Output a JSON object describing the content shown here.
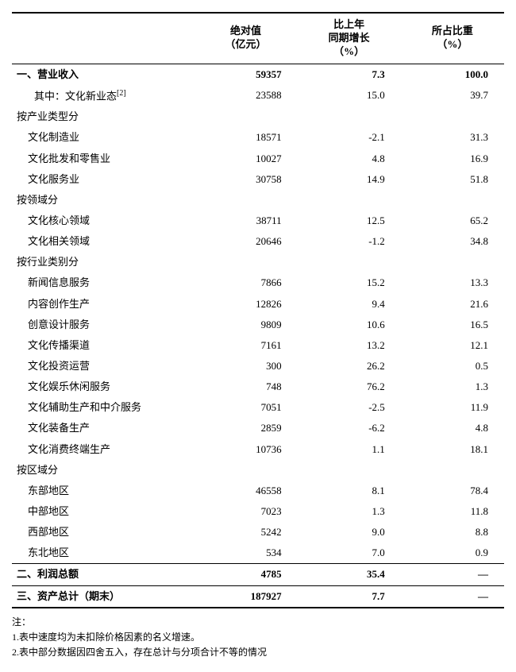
{
  "headers": {
    "label": "",
    "col1_l1": "绝对值",
    "col1_l2": "（亿元）",
    "col2_l1": "比上年",
    "col2_l2": "同期增长",
    "col2_l3": "（%）",
    "col3_l1": "所占比重",
    "col3_l2": "（%）"
  },
  "rows": [
    {
      "label": "一、营业收入",
      "v1": "59357",
      "v2": "7.3",
      "v3": "100.0",
      "bold": true,
      "sec": true
    },
    {
      "label": "其中：文化新业态",
      "sup": "[2]",
      "v1": "23588",
      "v2": "15.0",
      "v3": "39.7",
      "indent": 1
    },
    {
      "label": "按产业类型分"
    },
    {
      "label": "文化制造业",
      "v1": "18571",
      "v2": "-2.1",
      "v3": "31.3",
      "indent": 2
    },
    {
      "label": "文化批发和零售业",
      "v1": "10027",
      "v2": "4.8",
      "v3": "16.9",
      "indent": 2
    },
    {
      "label": "文化服务业",
      "v1": "30758",
      "v2": "14.9",
      "v3": "51.8",
      "indent": 2
    },
    {
      "label": "按领域分"
    },
    {
      "label": "文化核心领域",
      "v1": "38711",
      "v2": "12.5",
      "v3": "65.2",
      "indent": 2
    },
    {
      "label": "文化相关领域",
      "v1": "20646",
      "v2": "-1.2",
      "v3": "34.8",
      "indent": 2
    },
    {
      "label": "按行业类别分"
    },
    {
      "label": "新闻信息服务",
      "v1": "7866",
      "v2": "15.2",
      "v3": "13.3",
      "indent": 2
    },
    {
      "label": "内容创作生产",
      "v1": "12826",
      "v2": "9.4",
      "v3": "21.6",
      "indent": 2
    },
    {
      "label": "创意设计服务",
      "v1": "9809",
      "v2": "10.6",
      "v3": "16.5",
      "indent": 2
    },
    {
      "label": "文化传播渠道",
      "v1": "7161",
      "v2": "13.2",
      "v3": "12.1",
      "indent": 2
    },
    {
      "label": "文化投资运营",
      "v1": "300",
      "v2": "26.2",
      "v3": "0.5",
      "indent": 2
    },
    {
      "label": "文化娱乐休闲服务",
      "v1": "748",
      "v2": "76.2",
      "v3": "1.3",
      "indent": 2
    },
    {
      "label": "文化辅助生产和中介服务",
      "v1": "7051",
      "v2": "-2.5",
      "v3": "11.9",
      "indent": 2
    },
    {
      "label": "文化装备生产",
      "v1": "2859",
      "v2": "-6.2",
      "v3": "4.8",
      "indent": 2
    },
    {
      "label": "文化消费终端生产",
      "v1": "10736",
      "v2": "1.1",
      "v3": "18.1",
      "indent": 2
    },
    {
      "label": "按区域分"
    },
    {
      "label": "东部地区",
      "v1": "46558",
      "v2": "8.1",
      "v3": "78.4",
      "indent": 2
    },
    {
      "label": "中部地区",
      "v1": "7023",
      "v2": "1.3",
      "v3": "11.8",
      "indent": 2
    },
    {
      "label": "西部地区",
      "v1": "5242",
      "v2": "9.0",
      "v3": "8.8",
      "indent": 2
    },
    {
      "label": "东北地区",
      "v1": "534",
      "v2": "7.0",
      "v3": "0.9",
      "indent": 2
    },
    {
      "label": "二、利润总额",
      "v1": "4785",
      "v2": "35.4",
      "v3": "—",
      "bold": true,
      "sec": true
    },
    {
      "label": "三、资产总计（期末）",
      "v1": "187927",
      "v2": "7.7",
      "v3": "—",
      "bold": true,
      "sec": true,
      "final": true
    }
  ],
  "footnotes": {
    "label": "注：",
    "n1": "1.表中速度均为未扣除价格因素的名义增速。",
    "n2": "2.表中部分数据因四舍五入，存在总计与分项合计不等的情况"
  }
}
